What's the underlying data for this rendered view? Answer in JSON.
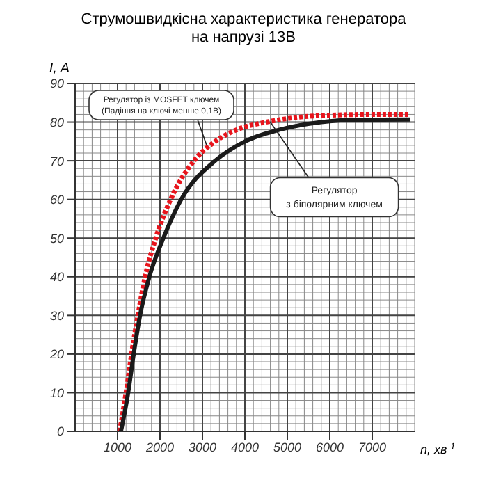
{
  "chart_data": {
    "type": "line",
    "title": "Струмошвидкісна характеристика генератора\nна напрузі 13В",
    "xlabel": "n, хв$^{-1}$",
    "ylabel": "I, A",
    "xlim": [
      0,
      8000
    ],
    "xticks": [
      1000,
      2000,
      3000,
      4000,
      5000,
      6000,
      7000
    ],
    "ylim": [
      0,
      90
    ],
    "yticks": [
      0,
      10,
      20,
      30,
      40,
      50,
      60,
      70,
      80,
      90
    ],
    "grid": true,
    "marker": "none",
    "series": [
      {
        "color": "#e8141c",
        "line_style": "dotted",
        "x": [
          1050,
          1200,
          1330,
          1480,
          1650,
          1900,
          2250,
          2800,
          3300,
          3800,
          4500,
          5200,
          6000,
          7000,
          7900
        ],
        "values": [
          0,
          10,
          20,
          30,
          40,
          50,
          60,
          70,
          75,
          78,
          80,
          81.2,
          81.8,
          82,
          82
        ]
      },
      {
        "color": "#1a1a1a",
        "line_style": "solid",
        "x": [
          1080,
          1250,
          1380,
          1530,
          1750,
          2080,
          2500,
          3300,
          4000,
          4800,
          5800,
          6500,
          7900
        ],
        "values": [
          0,
          10,
          20,
          30,
          40,
          50,
          60,
          70,
          75,
          78,
          80,
          80.6,
          80.7
        ]
      }
    ],
    "annotations": [
      {
        "text": "Регулятор із MOSFET ключем\n(Падіння на ключі менше 0,1В)",
        "x": 3100,
        "y": 74
      },
      {
        "text": "Регулятор\nз біполярним ключем",
        "x": 4600,
        "y": 80
      }
    ]
  }
}
